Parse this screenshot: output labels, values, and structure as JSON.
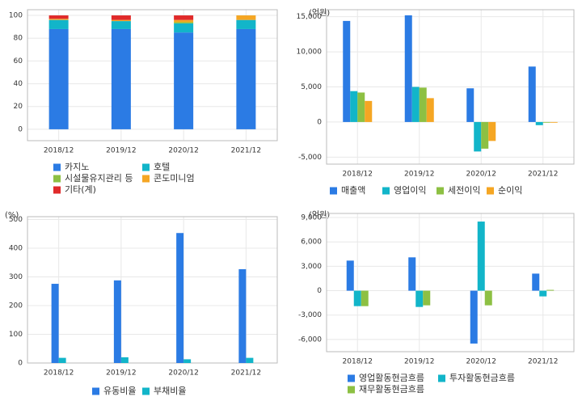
{
  "colors": {
    "blue": "#2b7be4",
    "teal": "#12b5c9",
    "green": "#8dc043",
    "orange": "#f5a623",
    "red": "#e02a2a",
    "axis": "#999999",
    "grid": "#e8e8e8",
    "text": "#333333"
  },
  "chart_data": [
    {
      "id": "composition",
      "type": "bar",
      "stacked": true,
      "unit": "",
      "categories": [
        "2018/12",
        "2019/12",
        "2020/12",
        "2021/12"
      ],
      "ylim": [
        -10,
        105
      ],
      "yticks": [
        0,
        20,
        40,
        60,
        80,
        100
      ],
      "grid": true,
      "legend_position": "bottom",
      "series": [
        {
          "name": "카지노",
          "color": "#2b7be4",
          "values": [
            88,
            88,
            85,
            88
          ]
        },
        {
          "name": "호텔",
          "color": "#12b5c9",
          "values": [
            8,
            7,
            8,
            8
          ]
        },
        {
          "name": "시설물유지관리 등",
          "color": "#8dc043",
          "values": [
            0,
            0,
            1,
            0
          ]
        },
        {
          "name": "콘도미니엄",
          "color": "#f5a623",
          "values": [
            1,
            1,
            2,
            4
          ]
        },
        {
          "name": "기타(계)",
          "color": "#e02a2a",
          "values": [
            3,
            4,
            4,
            0
          ]
        }
      ]
    },
    {
      "id": "income",
      "type": "bar",
      "unit": "(억원)",
      "categories": [
        "2018/12",
        "2019/12",
        "2020/12",
        "2021/12"
      ],
      "ylim": [
        -6000,
        16000
      ],
      "yticks": [
        -5000,
        0,
        5000,
        10000,
        15000
      ],
      "grid": true,
      "legend_position": "bottom",
      "series": [
        {
          "name": "매출액",
          "color": "#2b7be4",
          "values": [
            14400,
            15200,
            4800,
            7900
          ]
        },
        {
          "name": "영업이익",
          "color": "#12b5c9",
          "values": [
            4400,
            5000,
            -4200,
            -450
          ]
        },
        {
          "name": "세전이익",
          "color": "#8dc043",
          "values": [
            4200,
            4900,
            -3800,
            -100
          ]
        },
        {
          "name": "순이익",
          "color": "#f5a623",
          "values": [
            3000,
            3400,
            -2700,
            -100
          ]
        }
      ]
    },
    {
      "id": "ratios",
      "type": "bar",
      "unit": "(%)",
      "categories": [
        "2018/12",
        "2019/12",
        "2020/12",
        "2021/12"
      ],
      "ylim": [
        0,
        510
      ],
      "yticks": [
        0,
        100,
        200,
        300,
        400,
        500
      ],
      "grid": true,
      "legend_position": "bottom",
      "series": [
        {
          "name": "유동비율",
          "color": "#2b7be4",
          "values": [
            276,
            288,
            453,
            327
          ]
        },
        {
          "name": "부채비율",
          "color": "#12b5c9",
          "values": [
            18,
            20,
            13,
            18
          ]
        }
      ]
    },
    {
      "id": "cashflow",
      "type": "bar",
      "unit": "(억원)",
      "categories": [
        "2018/12",
        "2019/12",
        "2020/12",
        "2021/12"
      ],
      "ylim": [
        -7500,
        9500
      ],
      "yticks": [
        -6000,
        -3000,
        0,
        3000,
        6000,
        9000
      ],
      "grid": true,
      "legend_position": "bottom",
      "series": [
        {
          "name": "영업활동현금흐름",
          "color": "#2b7be4",
          "values": [
            3700,
            4100,
            -6500,
            2100
          ]
        },
        {
          "name": "투자활동현금흐름",
          "color": "#12b5c9",
          "values": [
            -1900,
            -2000,
            8500,
            -700
          ]
        },
        {
          "name": "재무활동현금흐름",
          "color": "#8dc043",
          "values": [
            -1900,
            -1800,
            -1800,
            100
          ]
        }
      ]
    }
  ]
}
